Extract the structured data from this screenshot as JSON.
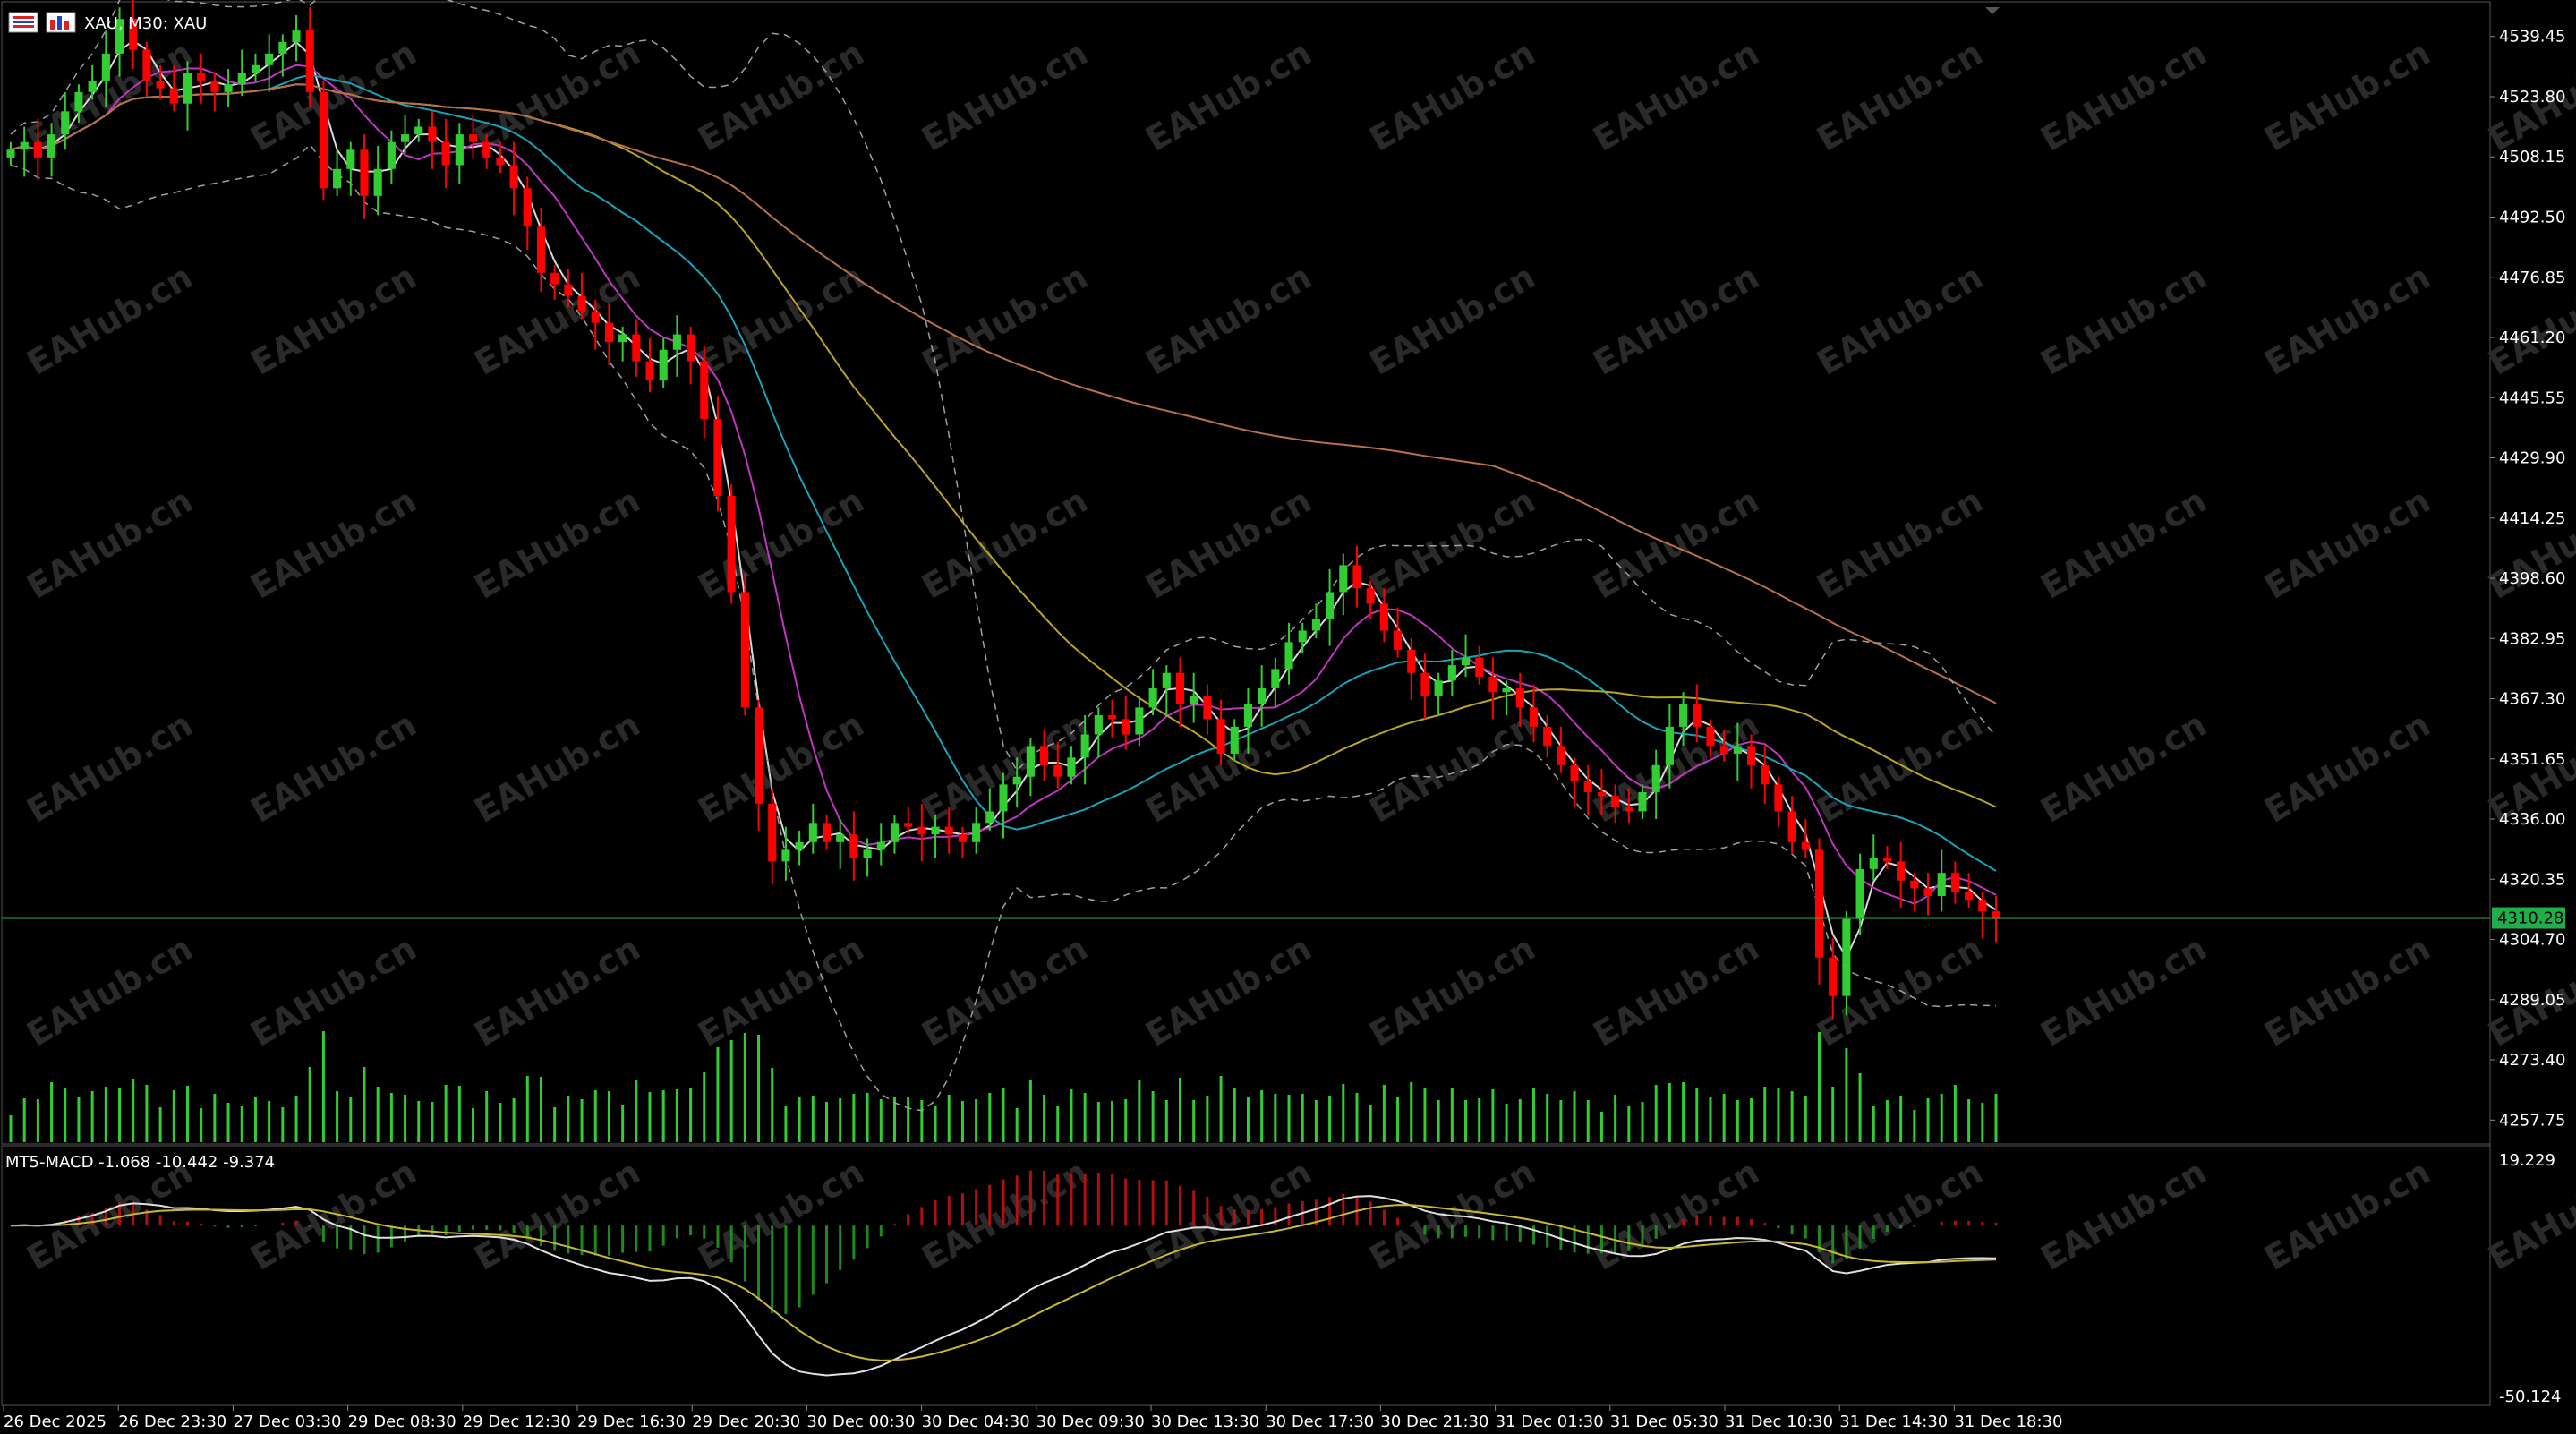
{
  "header": {
    "symbol_info": "XAU, M30:  XAU",
    "menu_icon": "menu-lines-icon",
    "chart_icon": "chart-window-icon"
  },
  "watermark": "EAHub.cn",
  "current_price_label": "4310.28",
  "macd_label": "MT5-MACD -1.068 -10.442 -9.374",
  "colors": {
    "background": "#000000",
    "bull": "#32cd32",
    "bear": "#ff0000",
    "price_line": "#1fae4a",
    "volume": "#32cd32",
    "ma_fast": "#d8d8d8",
    "ma_magenta": "#c036c0",
    "ma_cyan": "#18a4b8",
    "ma_yellow": "#b8a428",
    "ma_orange": "#b8704a",
    "bands": "#a0a0a0",
    "macd_line": "#e0e0e0",
    "macd_signal": "#c8b832"
  },
  "chart_data": {
    "type": "candlestick",
    "symbol": "XAU",
    "timeframe": "M30",
    "y_axis_ticks": [
      "4539.45",
      "4523.80",
      "4508.15",
      "4492.50",
      "4476.85",
      "4461.20",
      "4445.55",
      "4429.90",
      "4414.25",
      "4398.60",
      "4382.95",
      "4367.30",
      "4351.65",
      "4336.00",
      "4320.35",
      "4304.70",
      "4289.05",
      "4273.40",
      "4257.75"
    ],
    "y_range": [
      4252.0,
      4548.0
    ],
    "x_axis_ticks": [
      "26 Dec 2025",
      "26 Dec 23:30",
      "27 Dec 03:30",
      "29 Dec 08:30",
      "29 Dec 12:30",
      "29 Dec 16:30",
      "29 Dec 20:30",
      "30 Dec 00:30",
      "30 Dec 04:30",
      "30 Dec 09:30",
      "30 Dec 13:30",
      "30 Dec 17:30",
      "30 Dec 21:30",
      "31 Dec 01:30",
      "31 Dec 05:30",
      "31 Dec 10:30",
      "31 Dec 14:30",
      "31 Dec 18:30"
    ],
    "current_price": 4310.28,
    "macd": {
      "name": "MT5-MACD",
      "values": [
        -1.068,
        -10.442,
        -9.374
      ],
      "y_axis_ticks": [
        "19.229",
        "-50.124"
      ],
      "y_range": [
        -50.124,
        19.229
      ]
    },
    "closes": [
      4510,
      4512,
      4508,
      4514,
      4520,
      4525,
      4528,
      4535,
      4544,
      4536,
      4528,
      4526,
      4522,
      4530,
      4528,
      4525,
      4527,
      4530,
      4532,
      4535,
      4538,
      4541,
      4525,
      4500,
      4505,
      4510,
      4498,
      4505,
      4512,
      4514,
      4516,
      4512,
      4506,
      4514,
      4512,
      4508,
      4506,
      4500,
      4490,
      4478,
      4475,
      4472,
      4468,
      4465,
      4460,
      4462,
      4455,
      4450,
      4458,
      4462,
      4455,
      4440,
      4420,
      4395,
      4365,
      4340,
      4325,
      4328,
      4330,
      4335,
      4330,
      4332,
      4326,
      4328,
      4330,
      4335,
      4334,
      4332,
      4334,
      4332,
      4330,
      4335,
      4338,
      4345,
      4347,
      4355,
      4350,
      4347,
      4352,
      4358,
      4363,
      4362,
      4358,
      4365,
      4370,
      4374,
      4366,
      4368,
      4362,
      4353,
      4360,
      4366,
      4370,
      4375,
      4382,
      4385,
      4388,
      4395,
      4402,
      4396,
      4392,
      4385,
      4380,
      4374,
      4368,
      4372,
      4376,
      4378,
      4373,
      4369,
      4370,
      4365,
      4360,
      4355,
      4350,
      4346,
      4343,
      4342,
      4339,
      4338,
      4343,
      4350,
      4360,
      4366,
      4360,
      4355,
      4353,
      4355,
      4350,
      4345,
      4338,
      4330,
      4328,
      4300,
      4290,
      4310,
      4323,
      4326,
      4325,
      4320,
      4318,
      4316,
      4322,
      4317,
      4315,
      4312,
      4310
    ]
  }
}
